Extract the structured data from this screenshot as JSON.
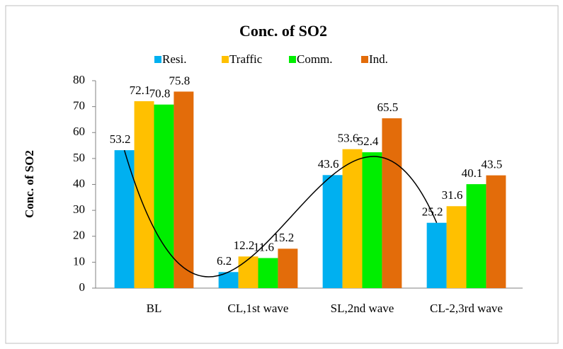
{
  "chart_data": {
    "type": "bar",
    "title": "Conc. of SO2",
    "y_label": "Conc. of SO2",
    "categories": [
      "BL",
      "CL,1st wave",
      "SL,2nd wave",
      "CL-2,3rd wave"
    ],
    "series": [
      {
        "name": "Resi.",
        "color": "#00b0f0",
        "values": [
          53.2,
          6.2,
          43.6,
          25.2
        ]
      },
      {
        "name": "Traffic",
        "color": "#ffc000",
        "values": [
          72.1,
          12.2,
          53.6,
          31.6
        ]
      },
      {
        "name": "Comm.",
        "color": "#00ee00",
        "values": [
          70.8,
          11.6,
          52.4,
          40.1
        ]
      },
      {
        "name": "Ind.",
        "color": "#e36c0a",
        "values": [
          75.8,
          15.2,
          65.5,
          43.5
        ]
      }
    ],
    "ylim": [
      0,
      80
    ],
    "yticks": [
      0,
      10,
      20,
      30,
      40,
      50,
      60,
      70,
      80
    ],
    "legend": "top",
    "trendline": {
      "series": "Resi.",
      "order": 3,
      "color": "#000000"
    }
  }
}
